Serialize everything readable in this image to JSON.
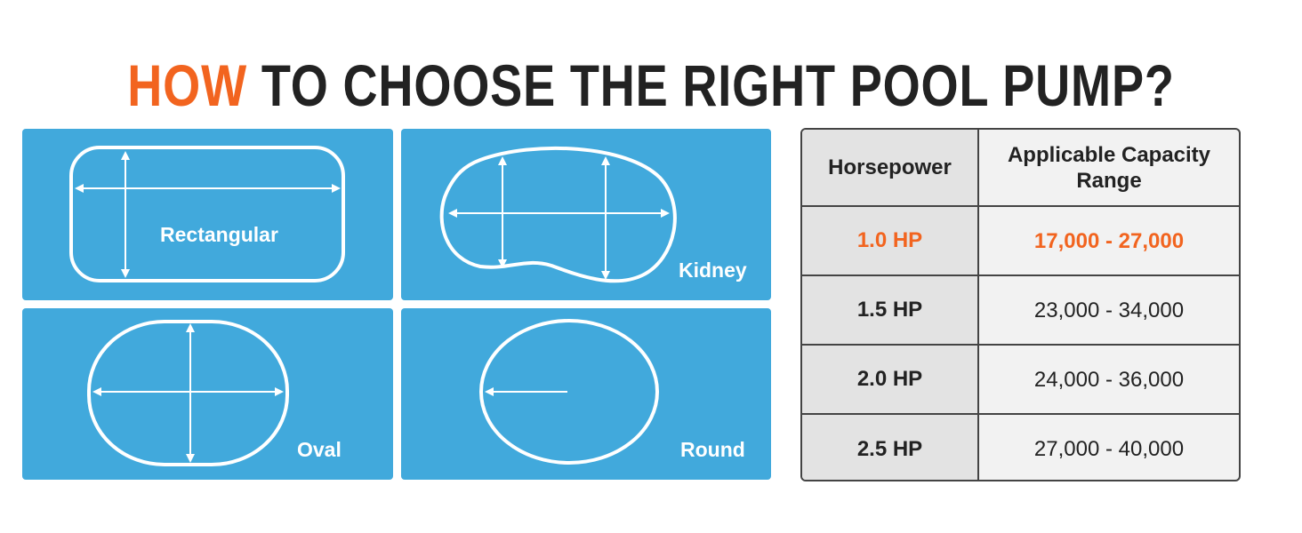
{
  "title": {
    "accent": "HOW",
    "rest": " TO CHOOSE THE RIGHT POOL PUMP?"
  },
  "shapes": [
    {
      "label": "Rectangular"
    },
    {
      "label": "Kidney"
    },
    {
      "label": "Oval"
    },
    {
      "label": "Round"
    }
  ],
  "table": {
    "headers": [
      "Horsepower",
      "Applicable Capacity Range"
    ],
    "rows": [
      {
        "hp": "1.0 HP",
        "range": "17,000 - 27,000",
        "highlight": true
      },
      {
        "hp": "1.5 HP",
        "range": "23,000 - 34,000"
      },
      {
        "hp": "2.0 HP",
        "range": "24,000 - 36,000"
      },
      {
        "hp": "2.5 HP",
        "range": "27,000 - 40,000"
      }
    ]
  },
  "colors": {
    "accent": "#f2641f",
    "panel": "#41a9dc",
    "text": "#222222"
  }
}
